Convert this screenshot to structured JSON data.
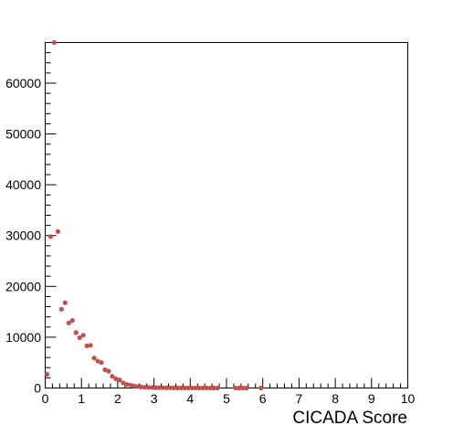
{
  "chart_data": {
    "type": "scatter",
    "title": "",
    "xlabel": "CICADA Score",
    "ylabel": "",
    "xlim": [
      0,
      10
    ],
    "ylim": [
      0,
      68000
    ],
    "x_ticks": [
      0,
      1,
      2,
      3,
      4,
      5,
      6,
      7,
      8,
      9,
      10
    ],
    "x_tick_labels": [
      "0",
      "1",
      "2",
      "3",
      "4",
      "5",
      "6",
      "7",
      "8",
      "9",
      "10"
    ],
    "y_ticks": [
      0,
      10000,
      20000,
      30000,
      40000,
      50000,
      60000
    ],
    "y_tick_labels": [
      "0",
      "10000",
      "20000",
      "30000",
      "40000",
      "50000",
      "60000"
    ],
    "grid": false,
    "marker_color": "#c0504d",
    "series": [
      {
        "x": [
          0.05,
          0.15,
          0.25,
          0.35,
          0.45,
          0.55,
          0.65,
          0.75,
          0.85,
          0.95,
          1.05,
          1.15,
          1.25,
          1.35,
          1.45,
          1.55,
          1.65,
          1.75,
          1.85,
          1.95,
          2.05,
          2.15,
          2.25,
          2.35,
          2.45,
          2.55,
          2.65,
          2.75,
          2.85,
          2.95,
          3.05,
          3.15,
          3.25,
          3.35,
          3.45,
          3.55,
          3.65,
          3.75,
          3.85,
          3.95,
          4.05,
          4.15,
          4.25,
          4.35,
          4.45,
          4.55,
          4.65,
          4.75,
          5.25,
          5.35,
          5.45,
          5.55,
          5.95
        ],
        "y": [
          2700,
          29800,
          68000,
          30800,
          15500,
          16800,
          12800,
          13300,
          10900,
          9900,
          10400,
          8300,
          8400,
          5900,
          5300,
          5000,
          3600,
          3300,
          2300,
          1800,
          1600,
          1000,
          700,
          600,
          400,
          300,
          200,
          150,
          120,
          90,
          70,
          60,
          50,
          40,
          30,
          25,
          20,
          18,
          15,
          12,
          10,
          9,
          8,
          7,
          6,
          5,
          4,
          3,
          2,
          2,
          1,
          1,
          1
        ]
      }
    ]
  }
}
